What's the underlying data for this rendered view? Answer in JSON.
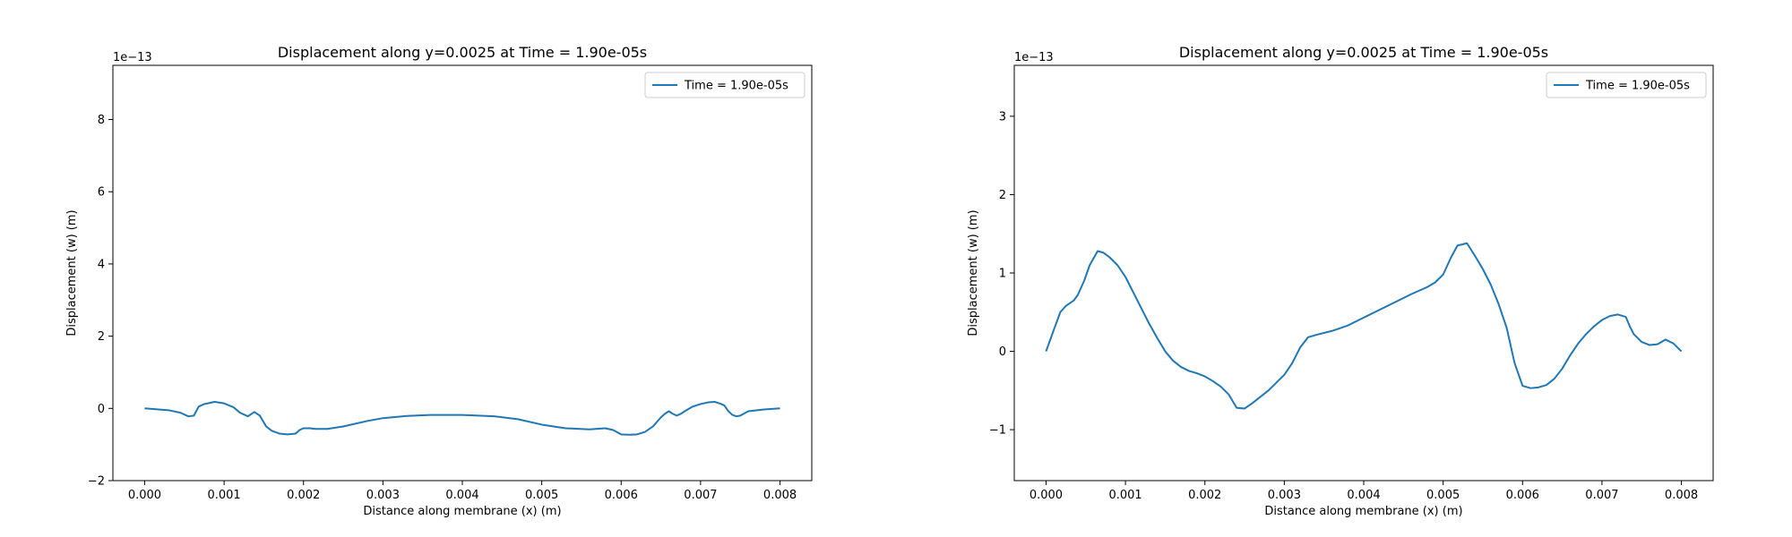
{
  "chart_data": [
    {
      "type": "line",
      "title": "Displacement along y=0.0025 at Time = 1.90e-05s",
      "xlabel": "Distance along membrane (x) (m)",
      "ylabel": "Displacement (w) (m)",
      "y_offset_label": "1e−13",
      "xlim": [
        -0.0004,
        0.0084
      ],
      "ylim": [
        -2,
        9.5
      ],
      "xticks": [
        0.0,
        0.001,
        0.002,
        0.003,
        0.004,
        0.005,
        0.006,
        0.007,
        0.008
      ],
      "xtick_labels": [
        "0.000",
        "0.001",
        "0.002",
        "0.003",
        "0.004",
        "0.005",
        "0.006",
        "0.007",
        "0.008"
      ],
      "yticks": [
        -2,
        0,
        2,
        4,
        6,
        8
      ],
      "ytick_labels": [
        "−2",
        "0",
        "2",
        "4",
        "6",
        "8"
      ],
      "legend": "upper-right",
      "grid": false,
      "series": [
        {
          "name": "Time = 1.90e-05s",
          "color": "#1f77b4",
          "x": [
            0,
            0.0003,
            0.00045,
            0.00055,
            0.00062,
            0.00068,
            0.00075,
            0.00088,
            0.001,
            0.00112,
            0.0012,
            0.0013,
            0.00138,
            0.00145,
            0.00153,
            0.0016,
            0.0017,
            0.0018,
            0.0019,
            0.00195,
            0.002,
            0.00208,
            0.00215,
            0.0022,
            0.0023,
            0.0025,
            0.0028,
            0.003,
            0.0033,
            0.0036,
            0.004,
            0.0044,
            0.0047,
            0.005,
            0.0053,
            0.0056,
            0.0058,
            0.0059,
            0.006,
            0.0061,
            0.0062,
            0.0063,
            0.0064,
            0.0065,
            0.00655,
            0.0066,
            0.00665,
            0.0067,
            0.00675,
            0.0068,
            0.0069,
            0.007,
            0.0071,
            0.00718,
            0.00725,
            0.0073,
            0.00735,
            0.0074,
            0.00745,
            0.0075,
            0.0076,
            0.0078,
            0.008
          ],
          "y": [
            0,
            -0.05,
            -0.12,
            -0.22,
            -0.2,
            0.05,
            0.12,
            0.18,
            0.14,
            0.03,
            -0.12,
            -0.22,
            -0.1,
            -0.2,
            -0.5,
            -0.62,
            -0.7,
            -0.72,
            -0.7,
            -0.6,
            -0.55,
            -0.55,
            -0.57,
            -0.57,
            -0.57,
            -0.5,
            -0.35,
            -0.27,
            -0.21,
            -0.18,
            -0.18,
            -0.22,
            -0.3,
            -0.45,
            -0.55,
            -0.58,
            -0.55,
            -0.6,
            -0.72,
            -0.73,
            -0.72,
            -0.65,
            -0.5,
            -0.25,
            -0.15,
            -0.08,
            -0.15,
            -0.2,
            -0.15,
            -0.08,
            0.05,
            0.12,
            0.17,
            0.18,
            0.13,
            0.08,
            -0.08,
            -0.18,
            -0.22,
            -0.2,
            -0.08,
            -0.03,
            0
          ]
        }
      ]
    },
    {
      "type": "line",
      "title": "Displacement along y=0.0025 at Time = 1.90e-05s",
      "xlabel": "Distance along membrane (x) (m)",
      "ylabel": "Displacement (w) (m)",
      "y_offset_label": "1e−13",
      "xlim": [
        -0.0004,
        0.0084
      ],
      "ylim": [
        -1.65,
        3.65
      ],
      "xticks": [
        0.0,
        0.001,
        0.002,
        0.003,
        0.004,
        0.005,
        0.006,
        0.007,
        0.008
      ],
      "xtick_labels": [
        "0.000",
        "0.001",
        "0.002",
        "0.003",
        "0.004",
        "0.005",
        "0.006",
        "0.007",
        "0.008"
      ],
      "yticks": [
        -1,
        0,
        1,
        2,
        3
      ],
      "ytick_labels": [
        "−1",
        "0",
        "1",
        "2",
        "3"
      ],
      "legend": "upper-right",
      "grid": false,
      "series": [
        {
          "name": "Time = 1.90e-05s",
          "color": "#1f77b4",
          "x": [
            0,
            0.0001,
            0.00018,
            0.00025,
            0.00035,
            0.0004,
            0.00048,
            0.00055,
            0.00065,
            0.00072,
            0.0008,
            0.0009,
            0.001,
            0.0011,
            0.0012,
            0.0013,
            0.0014,
            0.0015,
            0.0016,
            0.0017,
            0.0018,
            0.0019,
            0.002,
            0.0021,
            0.0022,
            0.0023,
            0.0024,
            0.0025,
            0.0026,
            0.0027,
            0.0028,
            0.0029,
            0.003,
            0.0031,
            0.0032,
            0.0033,
            0.0034,
            0.0036,
            0.0038,
            0.004,
            0.0042,
            0.0044,
            0.0046,
            0.0048,
            0.0049,
            0.005,
            0.0051,
            0.00518,
            0.0053,
            0.0054,
            0.0055,
            0.0056,
            0.0057,
            0.0058,
            0.0059,
            0.006,
            0.0061,
            0.0062,
            0.0063,
            0.0064,
            0.0065,
            0.0066,
            0.0067,
            0.0068,
            0.0069,
            0.007,
            0.0071,
            0.0072,
            0.0073,
            0.00735,
            0.0074,
            0.0075,
            0.0076,
            0.0077,
            0.0078,
            0.0079,
            0.008
          ],
          "y": [
            0,
            0.28,
            0.5,
            0.58,
            0.65,
            0.72,
            0.9,
            1.1,
            1.28,
            1.26,
            1.2,
            1.1,
            0.95,
            0.75,
            0.55,
            0.35,
            0.17,
            0.0,
            -0.12,
            -0.2,
            -0.25,
            -0.28,
            -0.32,
            -0.38,
            -0.45,
            -0.55,
            -0.72,
            -0.73,
            -0.66,
            -0.58,
            -0.5,
            -0.4,
            -0.3,
            -0.15,
            0.05,
            0.18,
            0.21,
            0.26,
            0.33,
            0.43,
            0.53,
            0.63,
            0.73,
            0.82,
            0.88,
            0.98,
            1.2,
            1.35,
            1.38,
            1.22,
            1.05,
            0.85,
            0.6,
            0.3,
            -0.15,
            -0.44,
            -0.47,
            -0.46,
            -0.43,
            -0.35,
            -0.22,
            -0.05,
            0.1,
            0.22,
            0.32,
            0.4,
            0.45,
            0.47,
            0.44,
            0.32,
            0.22,
            0.12,
            0.08,
            0.09,
            0.15,
            0.1,
            0
          ]
        }
      ]
    }
  ]
}
